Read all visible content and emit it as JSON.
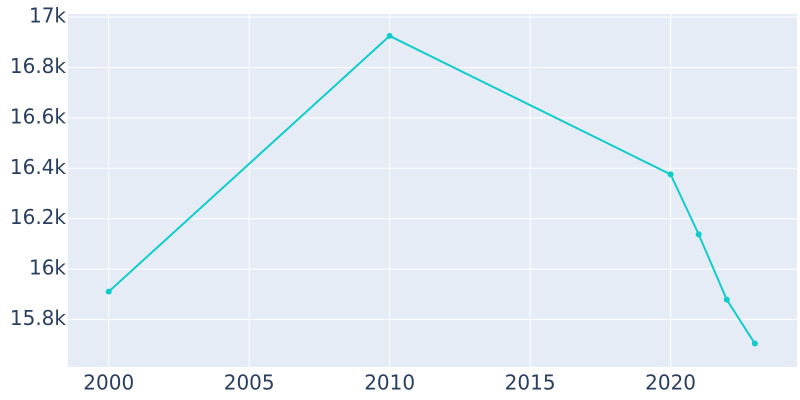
{
  "chart_data": {
    "type": "line",
    "x": [
      2000,
      2010,
      2020,
      2021,
      2022,
      2023
    ],
    "series": [
      {
        "color": "#12cccc",
        "values": [
          15911,
          16925,
          16376,
          16138,
          15879,
          15705
        ]
      }
    ],
    "xlim": [
      1998.55,
      2024.5
    ],
    "xticks": [
      2000,
      2005,
      2010,
      2015,
      2020
    ],
    "ylim": [
      15612,
      17012
    ],
    "yticks": [
      {
        "value": 15800,
        "label": "15.8k"
      },
      {
        "value": 16000,
        "label": "16k"
      },
      {
        "value": 16200,
        "label": "16.2k"
      },
      {
        "value": 16400,
        "label": "16.4k"
      },
      {
        "value": 16600,
        "label": "16.6k"
      },
      {
        "value": 16800,
        "label": "16.8k"
      },
      {
        "value": 17000,
        "label": "17k"
      }
    ],
    "grid": true
  }
}
